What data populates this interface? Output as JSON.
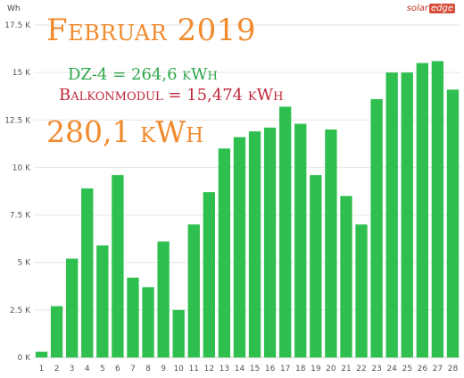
{
  "logo": {
    "part1": "solar",
    "part2": "edge"
  },
  "overlay": {
    "title": "Februar 2019",
    "dz_line": "DZ-4 = 264,6 kWh",
    "balkon_line": "Balkonmodul = 15,474 kWh",
    "total": "280,1 kWh"
  },
  "colors": {
    "bar": "#2fbf4f",
    "grid": "#e6e6e6",
    "title": "#f08a2d",
    "dz": "#2fa64a",
    "balkon": "#c0263a"
  },
  "chart_data": {
    "type": "bar",
    "title": "",
    "xlabel": "",
    "ylabel": "Wh",
    "ylim": [
      0,
      17500
    ],
    "yticks": [
      0,
      2500,
      5000,
      7500,
      10000,
      12500,
      15000,
      17500
    ],
    "ytick_labels": [
      "0 K",
      "2.5 K",
      "5 K",
      "7.5 K",
      "10 K",
      "12.5 K",
      "15 K",
      "17.5 K"
    ],
    "categories": [
      "1",
      "2",
      "3",
      "4",
      "5",
      "6",
      "7",
      "8",
      "9",
      "10",
      "11",
      "12",
      "13",
      "14",
      "15",
      "16",
      "17",
      "18",
      "19",
      "20",
      "21",
      "22",
      "23",
      "24",
      "25",
      "26",
      "27",
      "28"
    ],
    "values": [
      300,
      2700,
      5200,
      8900,
      5900,
      9600,
      4200,
      3700,
      6100,
      2500,
      7000,
      8700,
      11000,
      11600,
      11900,
      12100,
      13200,
      12300,
      9600,
      12000,
      8500,
      7000,
      13600,
      15000,
      15000,
      15500,
      15600,
      14100
    ],
    "grid": true,
    "legend": "none"
  }
}
